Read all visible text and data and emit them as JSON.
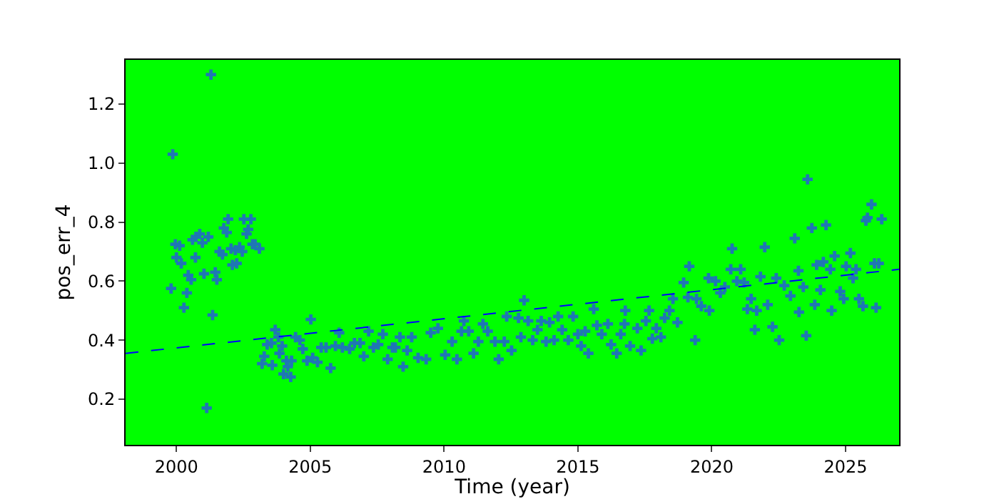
{
  "chart_data": {
    "type": "scatter",
    "xlabel": "Time (year)",
    "ylabel": "pos_err_4",
    "xlim": [
      1998.1,
      2027
    ],
    "xticks": [
      2000,
      2005,
      2010,
      2015,
      2020,
      2025
    ],
    "ylim": [
      0.045,
      1.35
    ],
    "yticks": [
      0.2,
      0.4,
      0.6,
      0.8,
      {
        "value": 1,
        "label": "1.0"
      },
      1.2
    ],
    "marker": "cross",
    "series": [
      {
        "color": "#1f77b4",
        "x": [
          1999.86,
          2001.29,
          2001.13,
          1999.8,
          1999.96,
          2000.12,
          2000.0,
          2000.18,
          2000.39,
          2000.28,
          2000.44,
          2000.55,
          2000.6,
          2000.73,
          2000.87,
          2000.71,
          2000.97,
          2001.03,
          2001.19,
          2001.35,
          2001.45,
          2001.51,
          2001.61,
          2001.72,
          2001.77,
          2001.88,
          2001.93,
          2002.04,
          2002.2,
          2002.36,
          2002.09,
          2002.25,
          2002.46,
          2002.52,
          2002.78,
          2002.62,
          2002.68,
          2002.84,
          2002.94,
          2003.1,
          2003.2,
          2003.28,
          2003.39,
          2003.55,
          2003.58,
          2003.69,
          2003.81,
          2003.85,
          2003.95,
          2004.0,
          2004.11,
          2004.3,
          2004.16,
          2004.27,
          2004.45,
          2004.61,
          2005.02,
          2004.72,
          2004.88,
          2005.09,
          2005.27,
          2005.41,
          2005.59,
          2005.76,
          2005.94,
          2006.08,
          2006.2,
          2006.47,
          2006.65,
          2006.86,
          2007.0,
          2007.18,
          2007.36,
          2007.54,
          2007.71,
          2007.89,
          2008.07,
          2008.18,
          2008.47,
          2008.35,
          2008.79,
          2008.62,
          2009.03,
          2009.33,
          2009.5,
          2009.77,
          2010.04,
          2010.3,
          2010.48,
          2010.65,
          2010.74,
          2010.92,
          2011.1,
          2011.28,
          2011.45,
          2011.63,
          2011.9,
          2012.04,
          2012.25,
          2012.34,
          2012.52,
          2012.78,
          2012.87,
          2012.99,
          2013.14,
          2013.31,
          2013.49,
          2013.63,
          2013.81,
          2013.94,
          2014.11,
          2014.26,
          2014.41,
          2014.64,
          2014.82,
          2015.0,
          2015.12,
          2015.27,
          2015.39,
          2015.59,
          2015.71,
          2015.89,
          2016.12,
          2016.24,
          2016.45,
          2016.6,
          2016.74,
          2016.77,
          2016.95,
          2017.22,
          2017.36,
          2017.54,
          2017.66,
          2017.78,
          2017.93,
          2018.1,
          2018.24,
          2018.42,
          2018.72,
          2018.55,
          2018.95,
          2019.11,
          2019.16,
          2019.38,
          2019.43,
          2019.61,
          2019.88,
          2019.91,
          2020.14,
          2020.32,
          2020.49,
          2020.71,
          2020.76,
          2020.94,
          2021.08,
          2021.21,
          2021.33,
          2021.47,
          2021.61,
          2021.68,
          2021.82,
          2021.98,
          2022.09,
          2022.27,
          2022.41,
          2022.52,
          2022.71,
          2022.94,
          2023.1,
          2023.24,
          2023.26,
          2023.42,
          2023.53,
          2023.58,
          2023.74,
          2023.85,
          2023.92,
          2024.06,
          2024.17,
          2024.27,
          2024.43,
          2024.48,
          2024.59,
          2024.8,
          2024.93,
          2025.02,
          2025.18,
          2025.28,
          2025.39,
          2025.5,
          2025.65,
          2025.76,
          2025.82,
          2025.97,
          2026.08,
          2026.14,
          2026.24,
          2026.35
        ],
        "values": [
          1.03,
          1.3,
          0.17,
          0.575,
          0.725,
          0.72,
          0.68,
          0.66,
          0.56,
          0.51,
          0.62,
          0.605,
          0.74,
          0.75,
          0.76,
          0.68,
          0.73,
          0.625,
          0.75,
          0.485,
          0.63,
          0.605,
          0.7,
          0.69,
          0.78,
          0.765,
          0.81,
          0.71,
          0.705,
          0.715,
          0.655,
          0.66,
          0.7,
          0.81,
          0.81,
          0.76,
          0.775,
          0.725,
          0.725,
          0.71,
          0.32,
          0.345,
          0.385,
          0.39,
          0.315,
          0.435,
          0.41,
          0.355,
          0.38,
          0.285,
          0.33,
          0.33,
          0.31,
          0.275,
          0.41,
          0.4,
          0.47,
          0.37,
          0.33,
          0.34,
          0.325,
          0.375,
          0.375,
          0.305,
          0.38,
          0.425,
          0.375,
          0.37,
          0.39,
          0.39,
          0.345,
          0.43,
          0.375,
          0.385,
          0.42,
          0.335,
          0.375,
          0.375,
          0.31,
          0.41,
          0.41,
          0.365,
          0.34,
          0.335,
          0.425,
          0.44,
          0.35,
          0.395,
          0.335,
          0.43,
          0.465,
          0.43,
          0.355,
          0.395,
          0.455,
          0.43,
          0.395,
          0.335,
          0.395,
          0.48,
          0.365,
          0.475,
          0.41,
          0.535,
          0.465,
          0.4,
          0.435,
          0.465,
          0.395,
          0.46,
          0.4,
          0.48,
          0.435,
          0.4,
          0.48,
          0.42,
          0.38,
          0.43,
          0.355,
          0.505,
          0.45,
          0.42,
          0.455,
          0.385,
          0.355,
          0.42,
          0.455,
          0.5,
          0.38,
          0.44,
          0.365,
          0.465,
          0.5,
          0.405,
          0.44,
          0.41,
          0.475,
          0.5,
          0.46,
          0.54,
          0.595,
          0.545,
          0.65,
          0.4,
          0.54,
          0.515,
          0.61,
          0.5,
          0.6,
          0.56,
          0.58,
          0.64,
          0.71,
          0.6,
          0.64,
          0.595,
          0.505,
          0.54,
          0.435,
          0.5,
          0.615,
          0.715,
          0.52,
          0.445,
          0.61,
          0.4,
          0.585,
          0.55,
          0.745,
          0.635,
          0.495,
          0.58,
          0.415,
          0.945,
          0.78,
          0.52,
          0.655,
          0.57,
          0.665,
          0.79,
          0.64,
          0.5,
          0.685,
          0.565,
          0.54,
          0.65,
          0.695,
          0.61,
          0.64,
          0.54,
          0.515,
          0.805,
          0.815,
          0.86,
          0.66,
          0.51,
          0.66,
          0.81
        ]
      },
      {
        "type": "line",
        "color": "#0000ff",
        "line_style": "dashed",
        "marker": "none",
        "x": [
          1998.1,
          2027
        ],
        "values": [
          0.355,
          0.64
        ]
      }
    ]
  }
}
